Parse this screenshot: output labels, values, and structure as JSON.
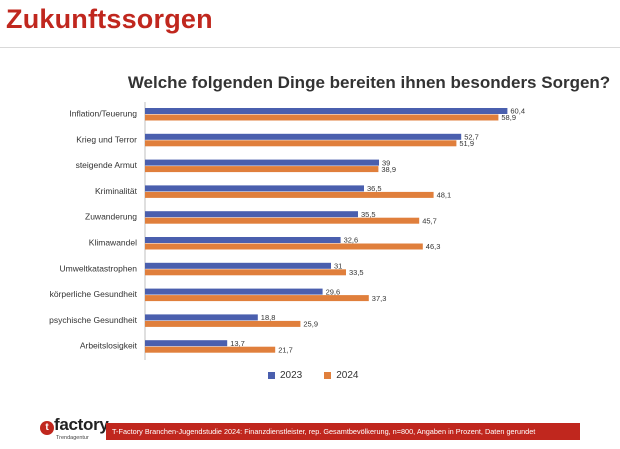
{
  "page_title": "Zukunftssorgen",
  "chart_data": {
    "type": "bar",
    "orientation": "horizontal",
    "title": "Welche folgenden Dinge bereiten ihnen besonders Sorgen?",
    "categories": [
      "Inflation/Teuerung",
      "Krieg und Terror",
      "steigende Armut",
      "Kriminalität",
      "Zuwanderung",
      "Klimawandel",
      "Umweltkatastrophen",
      "körperliche Gesundheit",
      "psychische Gesundheit",
      "Arbeitslosigkeit"
    ],
    "series": [
      {
        "name": "2023",
        "color": "#4a5fae",
        "values": [
          60.4,
          52.7,
          39,
          36.5,
          35.5,
          32.6,
          31,
          29.6,
          18.8,
          13.7
        ],
        "labels": [
          "60,4",
          "52,7",
          "39",
          "36,5",
          "35,5",
          "32,6",
          "31",
          "29,6",
          "18,8",
          "13,7"
        ]
      },
      {
        "name": "2024",
        "color": "#e07f3c",
        "values": [
          58.9,
          51.9,
          38.9,
          48.1,
          45.7,
          46.3,
          33.5,
          37.3,
          25.9,
          21.7
        ],
        "labels": [
          "58,9",
          "51,9",
          "38,9",
          "48,1",
          "45,7",
          "46,3",
          "33,5",
          "37,3",
          "25,9",
          "21,7"
        ]
      }
    ],
    "xlim": [
      0,
      65
    ],
    "legend_position": "bottom",
    "grid": false
  },
  "logo": {
    "mark": "t",
    "name": "factory",
    "tagline": "Trendagentur"
  },
  "footer": {
    "source": "T-Factory Branchen-Jugendstudie 2024: Finanzdienstleister, rep. Gesamtbevölkerung, n=800, Angaben in Prozent, Daten gerundet"
  }
}
